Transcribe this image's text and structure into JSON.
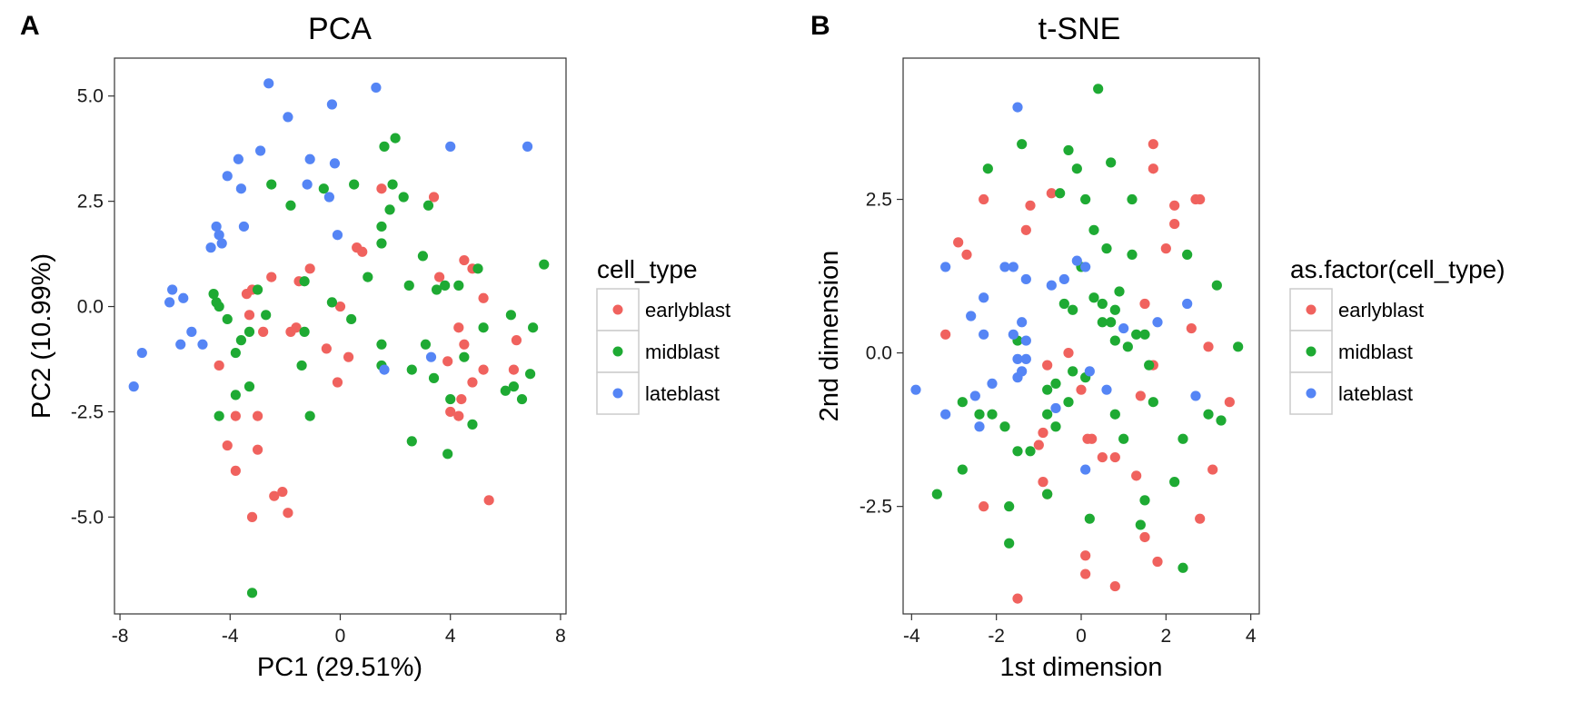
{
  "panels": [
    {
      "tag": "A",
      "title": "PCA",
      "xlabel": "PC1 (29.51%)",
      "ylabel": "PC2 (10.99%)",
      "legend_title": "cell_type"
    },
    {
      "tag": "B",
      "title": "t-SNE",
      "xlabel": "1st dimension",
      "ylabel": "2nd dimension",
      "legend_title": "as.factor(cell_type)"
    }
  ],
  "legend_items": [
    "earlyblast",
    "midblast",
    "lateblast"
  ],
  "colors": {
    "earlyblast": "#F0625E",
    "midblast": "#1EAA33",
    "lateblast": "#5585F5"
  },
  "chart_data": [
    {
      "type": "scatter",
      "title": "PCA",
      "xlabel": "PC1 (29.51%)",
      "ylabel": "PC2 (10.99%)",
      "xlim": [
        -8.2,
        8.2
      ],
      "ylim": [
        -7.3,
        5.9
      ],
      "xticks": [
        -8,
        -4,
        0,
        4,
        8
      ],
      "xtick_labels": [
        "-8",
        "-4",
        "0",
        "4",
        "8"
      ],
      "yticks": [
        -5,
        -2.5,
        0,
        2.5,
        5
      ],
      "ytick_labels": [
        "-5.0",
        "-2.5",
        "0.0",
        "2.5",
        "5.0"
      ],
      "grid": false,
      "legend_title": "cell_type",
      "series": [
        {
          "name": "earlyblast",
          "points": [
            [
              -4.4,
              -1.4
            ],
            [
              -3.8,
              -2.6
            ],
            [
              -4.1,
              -3.3
            ],
            [
              -3.8,
              -3.9
            ],
            [
              -3.2,
              -5.0
            ],
            [
              -3.0,
              -3.4
            ],
            [
              -2.8,
              -0.6
            ],
            [
              -3.3,
              -0.2
            ],
            [
              -3.4,
              0.3
            ],
            [
              -3.2,
              0.4
            ],
            [
              -3.0,
              -2.6
            ],
            [
              -2.5,
              0.7
            ],
            [
              -2.4,
              -4.5
            ],
            [
              -2.1,
              -4.4
            ],
            [
              -1.9,
              -4.9
            ],
            [
              -1.8,
              -0.6
            ],
            [
              -1.6,
              -0.5
            ],
            [
              -1.5,
              0.6
            ],
            [
              -1.1,
              0.9
            ],
            [
              -0.5,
              -1.0
            ],
            [
              0.0,
              0.0
            ],
            [
              -0.1,
              -1.8
            ],
            [
              0.3,
              -1.2
            ],
            [
              0.6,
              1.4
            ],
            [
              0.8,
              1.3
            ],
            [
              1.5,
              2.8
            ],
            [
              3.4,
              2.6
            ],
            [
              3.6,
              0.7
            ],
            [
              4.3,
              -0.5
            ],
            [
              3.9,
              -1.3
            ],
            [
              4.5,
              -0.9
            ],
            [
              4.5,
              1.1
            ],
            [
              4.8,
              0.9
            ],
            [
              5.2,
              0.2
            ],
            [
              4.8,
              -1.8
            ],
            [
              4.4,
              -2.2
            ],
            [
              4.0,
              -2.5
            ],
            [
              4.3,
              -2.6
            ],
            [
              5.4,
              -4.6
            ],
            [
              5.2,
              -1.5
            ],
            [
              6.3,
              -1.5
            ],
            [
              6.4,
              -0.8
            ]
          ]
        },
        {
          "name": "midblast",
          "points": [
            [
              -3.2,
              -6.8
            ],
            [
              -4.4,
              -2.6
            ],
            [
              -3.8,
              -2.1
            ],
            [
              -3.3,
              -1.9
            ],
            [
              -3.8,
              -1.1
            ],
            [
              -3.3,
              -0.6
            ],
            [
              -3.6,
              -0.8
            ],
            [
              -4.1,
              -0.3
            ],
            [
              -4.5,
              0.1
            ],
            [
              -4.6,
              0.3
            ],
            [
              -4.4,
              0.0
            ],
            [
              -3.0,
              0.4
            ],
            [
              -2.7,
              -0.2
            ],
            [
              -2.5,
              2.9
            ],
            [
              -1.8,
              2.4
            ],
            [
              -1.3,
              -0.6
            ],
            [
              -1.4,
              -1.4
            ],
            [
              -1.3,
              0.6
            ],
            [
              -1.1,
              -2.6
            ],
            [
              -0.6,
              2.8
            ],
            [
              -0.3,
              0.1
            ],
            [
              0.4,
              -0.3
            ],
            [
              0.5,
              2.9
            ],
            [
              1.0,
              0.7
            ],
            [
              1.5,
              1.5
            ],
            [
              1.5,
              1.9
            ],
            [
              1.5,
              -0.9
            ],
            [
              1.5,
              -1.4
            ],
            [
              1.6,
              3.8
            ],
            [
              1.8,
              2.3
            ],
            [
              1.9,
              2.9
            ],
            [
              2.0,
              4.0
            ],
            [
              2.3,
              2.6
            ],
            [
              2.5,
              0.5
            ],
            [
              2.6,
              -1.5
            ],
            [
              2.6,
              -3.2
            ],
            [
              3.0,
              1.2
            ],
            [
              3.1,
              -0.9
            ],
            [
              3.2,
              2.4
            ],
            [
              3.4,
              -1.7
            ],
            [
              3.5,
              0.4
            ],
            [
              3.8,
              0.5
            ],
            [
              3.9,
              -3.5
            ],
            [
              4.0,
              -2.2
            ],
            [
              4.3,
              0.5
            ],
            [
              4.5,
              -1.2
            ],
            [
              4.8,
              -2.8
            ],
            [
              5.0,
              0.9
            ],
            [
              5.2,
              -0.5
            ],
            [
              6.0,
              -2.0
            ],
            [
              6.2,
              -0.2
            ],
            [
              6.3,
              -1.9
            ],
            [
              6.6,
              -2.2
            ],
            [
              6.9,
              -1.6
            ],
            [
              7.0,
              -0.5
            ],
            [
              7.4,
              1.0
            ]
          ]
        },
        {
          "name": "lateblast",
          "points": [
            [
              -7.5,
              -1.9
            ],
            [
              -7.2,
              -1.1
            ],
            [
              -6.2,
              0.1
            ],
            [
              -6.1,
              0.4
            ],
            [
              -5.7,
              0.2
            ],
            [
              -5.8,
              -0.9
            ],
            [
              -5.4,
              -0.6
            ],
            [
              -5.0,
              -0.9
            ],
            [
              -4.7,
              1.4
            ],
            [
              -4.5,
              1.9
            ],
            [
              -4.4,
              1.7
            ],
            [
              -4.3,
              1.5
            ],
            [
              -4.1,
              3.1
            ],
            [
              -3.7,
              3.5
            ],
            [
              -3.6,
              2.8
            ],
            [
              -3.5,
              1.9
            ],
            [
              -2.9,
              3.7
            ],
            [
              -2.6,
              5.3
            ],
            [
              -1.9,
              4.5
            ],
            [
              -1.2,
              2.9
            ],
            [
              -1.1,
              3.5
            ],
            [
              -0.4,
              2.6
            ],
            [
              -0.2,
              3.4
            ],
            [
              -0.1,
              1.7
            ],
            [
              -0.3,
              4.8
            ],
            [
              1.3,
              5.2
            ],
            [
              1.6,
              -1.5
            ],
            [
              3.3,
              -1.2
            ],
            [
              4.0,
              3.8
            ],
            [
              6.8,
              3.8
            ]
          ]
        }
      ]
    },
    {
      "type": "scatter",
      "title": "t-SNE",
      "xlabel": "1st dimension",
      "ylabel": "2nd dimension",
      "xlim": [
        -4.2,
        4.2
      ],
      "ylim": [
        -4.25,
        4.8
      ],
      "xticks": [
        -4,
        -2,
        0,
        2,
        4
      ],
      "xtick_labels": [
        "-4",
        "-2",
        "0",
        "2",
        "4"
      ],
      "yticks": [
        -2.5,
        0,
        2.5
      ],
      "ytick_labels": [
        "-2.5",
        "0.0",
        "2.5"
      ],
      "grid": false,
      "legend_title": "as.factor(cell_type)",
      "series": [
        {
          "name": "earlyblast",
          "points": [
            [
              -3.2,
              0.3
            ],
            [
              -2.9,
              1.8
            ],
            [
              -2.7,
              1.6
            ],
            [
              -2.3,
              2.5
            ],
            [
              -2.3,
              -2.5
            ],
            [
              -1.5,
              -4.0
            ],
            [
              -1.3,
              2.0
            ],
            [
              -1.2,
              2.4
            ],
            [
              -0.8,
              -0.2
            ],
            [
              -1.0,
              -1.5
            ],
            [
              -0.9,
              -1.3
            ],
            [
              -0.9,
              -2.1
            ],
            [
              -0.8,
              -2.3
            ],
            [
              -0.7,
              2.6
            ],
            [
              0.0,
              -0.6
            ],
            [
              -0.3,
              0.0
            ],
            [
              0.1,
              -3.3
            ],
            [
              0.1,
              -3.6
            ],
            [
              0.15,
              -1.4
            ],
            [
              0.25,
              -1.4
            ],
            [
              0.5,
              -1.7
            ],
            [
              0.8,
              -1.7
            ],
            [
              0.8,
              -3.8
            ],
            [
              1.3,
              -2.0
            ],
            [
              1.4,
              -0.7
            ],
            [
              1.5,
              -3.0
            ],
            [
              1.5,
              0.8
            ],
            [
              1.7,
              -0.2
            ],
            [
              1.7,
              3.0
            ],
            [
              1.7,
              3.4
            ],
            [
              1.8,
              -3.4
            ],
            [
              2.0,
              1.7
            ],
            [
              2.2,
              2.4
            ],
            [
              2.2,
              2.1
            ],
            [
              2.6,
              0.4
            ],
            [
              2.7,
              2.5
            ],
            [
              2.8,
              2.5
            ],
            [
              2.8,
              -2.7
            ],
            [
              3.0,
              0.1
            ],
            [
              3.1,
              -1.9
            ],
            [
              3.5,
              -0.8
            ]
          ]
        },
        {
          "name": "midblast",
          "points": [
            [
              -3.4,
              -2.3
            ],
            [
              -2.8,
              -1.9
            ],
            [
              -2.8,
              -0.8
            ],
            [
              -2.4,
              -1.0
            ],
            [
              -2.2,
              3.0
            ],
            [
              -2.1,
              -1.0
            ],
            [
              -1.8,
              -1.2
            ],
            [
              -1.7,
              -3.1
            ],
            [
              -1.7,
              -2.5
            ],
            [
              -1.5,
              -1.6
            ],
            [
              -1.4,
              3.4
            ],
            [
              -1.2,
              -1.6
            ],
            [
              -0.8,
              -1.0
            ],
            [
              -0.8,
              -2.3
            ],
            [
              -0.6,
              -1.2
            ],
            [
              -0.6,
              -0.5
            ],
            [
              -0.4,
              0.8
            ],
            [
              -0.8,
              -0.6
            ],
            [
              -0.5,
              2.6
            ],
            [
              -0.3,
              -0.8
            ],
            [
              -0.3,
              3.3
            ],
            [
              -0.2,
              -0.3
            ],
            [
              -0.2,
              0.7
            ],
            [
              -0.1,
              3.0
            ],
            [
              0.0,
              1.4
            ],
            [
              0.1,
              -0.4
            ],
            [
              0.1,
              2.5
            ],
            [
              0.2,
              -2.7
            ],
            [
              0.3,
              0.9
            ],
            [
              0.3,
              2.0
            ],
            [
              0.4,
              4.3
            ],
            [
              0.5,
              0.8
            ],
            [
              0.5,
              0.5
            ],
            [
              0.6,
              1.7
            ],
            [
              0.7,
              0.5
            ],
            [
              0.7,
              3.1
            ],
            [
              0.8,
              0.7
            ],
            [
              0.8,
              -1.0
            ],
            [
              0.8,
              0.2
            ],
            [
              0.9,
              1.0
            ],
            [
              1.0,
              -1.4
            ],
            [
              1.1,
              0.1
            ],
            [
              1.2,
              1.6
            ],
            [
              1.2,
              2.5
            ],
            [
              1.3,
              0.3
            ],
            [
              1.4,
              -2.8
            ],
            [
              1.5,
              -2.4
            ],
            [
              1.5,
              0.3
            ],
            [
              1.6,
              -0.2
            ],
            [
              1.7,
              -0.8
            ],
            [
              2.2,
              -2.1
            ],
            [
              2.4,
              -1.4
            ],
            [
              2.4,
              -3.5
            ],
            [
              2.5,
              1.6
            ],
            [
              3.0,
              -1.0
            ],
            [
              3.2,
              1.1
            ],
            [
              3.3,
              -1.1
            ],
            [
              3.7,
              0.1
            ],
            [
              -1.5,
              0.2
            ]
          ]
        },
        {
          "name": "lateblast",
          "points": [
            [
              -3.9,
              -0.6
            ],
            [
              -3.2,
              1.4
            ],
            [
              -3.2,
              -1.0
            ],
            [
              -2.6,
              0.6
            ],
            [
              -2.5,
              -0.7
            ],
            [
              -2.4,
              -1.2
            ],
            [
              -2.3,
              0.3
            ],
            [
              -2.3,
              0.9
            ],
            [
              -2.1,
              -0.5
            ],
            [
              -1.8,
              1.4
            ],
            [
              -1.6,
              0.3
            ],
            [
              -1.5,
              -0.1
            ],
            [
              -1.5,
              -0.4
            ],
            [
              -1.4,
              0.5
            ],
            [
              -1.3,
              0.2
            ],
            [
              -1.3,
              1.2
            ],
            [
              -1.3,
              -0.1
            ],
            [
              -1.5,
              4.0
            ],
            [
              -1.6,
              1.4
            ],
            [
              -1.4,
              -0.3
            ],
            [
              -0.7,
              1.1
            ],
            [
              -0.6,
              -0.9
            ],
            [
              -0.4,
              1.2
            ],
            [
              -0.1,
              1.5
            ],
            [
              0.1,
              1.4
            ],
            [
              0.1,
              -1.9
            ],
            [
              0.2,
              -0.3
            ],
            [
              0.6,
              -0.6
            ],
            [
              1.0,
              0.4
            ],
            [
              1.8,
              0.5
            ],
            [
              2.5,
              0.8
            ],
            [
              2.7,
              -0.7
            ]
          ]
        }
      ]
    }
  ]
}
